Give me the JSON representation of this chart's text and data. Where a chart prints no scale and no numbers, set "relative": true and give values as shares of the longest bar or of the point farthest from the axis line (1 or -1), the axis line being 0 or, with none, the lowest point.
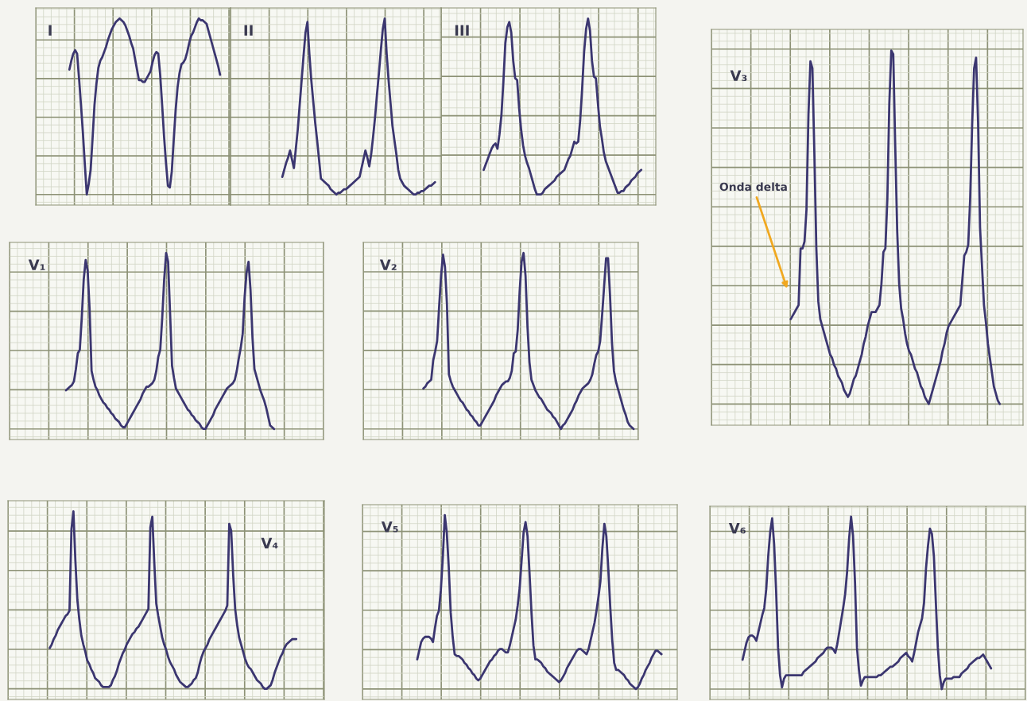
{
  "chart_data": [
    {
      "type": "line",
      "title": "I",
      "relative": true,
      "grid": true,
      "tick_labels": false,
      "color": "#3b3670",
      "categories": [
        null,
        null,
        null,
        null,
        null,
        null,
        null,
        null,
        null,
        null,
        null,
        null,
        null,
        null,
        null,
        null,
        null,
        null,
        null,
        null,
        null,
        null,
        null,
        null,
        null,
        null,
        null,
        null,
        null,
        null,
        null,
        null,
        null,
        null,
        null,
        null,
        null,
        null,
        null,
        null,
        null,
        null,
        null,
        null,
        null,
        null,
        null,
        null,
        null,
        null,
        null,
        null,
        null,
        null,
        null,
        null,
        null,
        null,
        null,
        null,
        null,
        null,
        null,
        null,
        null,
        null,
        null,
        null,
        null,
        null,
        null,
        null,
        null,
        null,
        null,
        null,
        null,
        null,
        null
      ],
      "values": [
        0.71,
        0.76,
        0.8,
        0.82,
        0.8,
        0.66,
        0.51,
        0.35,
        0.17,
        0,
        0.06,
        0.14,
        0.32,
        0.51,
        0.63,
        0.72,
        0.76,
        0.78,
        0.81,
        0.84,
        0.88,
        0.91,
        0.94,
        0.96,
        0.98,
        0.99,
        1,
        0.99,
        0.98,
        0.96,
        0.93,
        0.9,
        0.86,
        0.83,
        0.77,
        0.71,
        0.65,
        0.65,
        0.64,
        0.64,
        0.66,
        0.68,
        0.7,
        0.75,
        0.79,
        0.81,
        0.8,
        0.68,
        0.51,
        0.33,
        0.18,
        0.05,
        0.04,
        0.13,
        0.31,
        0.48,
        0.61,
        0.69,
        0.74,
        0.75,
        0.77,
        0.81,
        0.86,
        0.9,
        0.92,
        0.95,
        0.98,
        1,
        0.99,
        0.99,
        0.98,
        0.97,
        0.93,
        0.89,
        0.85,
        0.81,
        0.77,
        0.73,
        0.68
      ]
    },
    {
      "type": "line",
      "title": "II",
      "relative": true,
      "grid": true,
      "tick_labels": false,
      "color": "#3b3670",
      "categories": [
        null,
        null,
        null,
        null,
        null,
        null,
        null,
        null,
        null,
        null,
        null,
        null,
        null,
        null,
        null,
        null,
        null,
        null,
        null,
        null,
        null,
        null,
        null,
        null,
        null,
        null,
        null,
        null,
        null,
        null,
        null,
        null,
        null,
        null,
        null,
        null,
        null,
        null,
        null,
        null,
        null,
        null,
        null,
        null,
        null,
        null,
        null,
        null,
        null,
        null,
        null,
        null,
        null,
        null,
        null,
        null,
        null,
        null,
        null,
        null,
        null,
        null,
        null,
        null,
        null,
        null,
        null,
        null,
        null,
        null,
        null,
        null,
        null,
        null,
        null,
        null,
        null,
        null,
        null,
        null
      ],
      "values": [
        0.1,
        0.14,
        0.18,
        0.21,
        0.25,
        0.2,
        0.15,
        0.26,
        0.37,
        0.51,
        0.65,
        0.79,
        0.92,
        0.98,
        0.8,
        0.65,
        0.53,
        0.41,
        0.31,
        0.2,
        0.09,
        0.08,
        0.07,
        0.06,
        0.05,
        0.03,
        0.02,
        0.01,
        0,
        0.01,
        0.01,
        0.02,
        0.03,
        0.03,
        0.04,
        0.05,
        0.06,
        0.07,
        0.08,
        0.09,
        0.1,
        0.15,
        0.2,
        0.25,
        0.21,
        0.16,
        0.23,
        0.33,
        0.44,
        0.57,
        0.69,
        0.82,
        0.94,
        1,
        0.8,
        0.65,
        0.52,
        0.39,
        0.31,
        0.23,
        0.14,
        0.09,
        0.07,
        0.05,
        0.04,
        0.03,
        0.02,
        0.01,
        0,
        0,
        0.01,
        0.01,
        0.02,
        0.02,
        0.03,
        0.04,
        0.05,
        0.05,
        0.06,
        0.07
      ]
    },
    {
      "type": "line",
      "title": "III",
      "relative": true,
      "grid": true,
      "tick_labels": false,
      "color": "#3b3670",
      "categories": [
        null,
        null,
        null,
        null,
        null,
        null,
        null,
        null,
        null,
        null,
        null,
        null,
        null,
        null,
        null,
        null,
        null,
        null,
        null,
        null,
        null,
        null,
        null,
        null,
        null,
        null,
        null,
        null,
        null,
        null,
        null,
        null,
        null,
        null,
        null,
        null,
        null,
        null,
        null,
        null,
        null,
        null,
        null,
        null,
        null,
        null,
        null,
        null,
        null,
        null,
        null,
        null,
        null,
        null,
        null,
        null,
        null,
        null,
        null,
        null,
        null,
        null,
        null,
        null,
        null,
        null,
        null,
        null,
        null,
        null,
        null,
        null,
        null,
        null,
        null,
        null,
        null,
        null,
        null,
        null,
        null
      ],
      "values": [
        0.14,
        0.17,
        0.2,
        0.23,
        0.26,
        0.28,
        0.29,
        0.26,
        0.34,
        0.45,
        0.64,
        0.86,
        0.95,
        0.98,
        0.92,
        0.76,
        0.66,
        0.65,
        0.49,
        0.37,
        0.28,
        0.22,
        0.18,
        0.15,
        0.11,
        0.07,
        0.03,
        0,
        0,
        0,
        0.01,
        0.03,
        0.04,
        0.05,
        0.06,
        0.07,
        0.08,
        0.1,
        0.11,
        0.12,
        0.13,
        0.14,
        0.17,
        0.2,
        0.22,
        0.26,
        0.3,
        0.29,
        0.3,
        0.42,
        0.6,
        0.81,
        0.94,
        1,
        0.93,
        0.76,
        0.67,
        0.66,
        0.52,
        0.39,
        0.32,
        0.24,
        0.19,
        0.16,
        0.13,
        0.1,
        0.07,
        0.04,
        0.01,
        0.01,
        0.02,
        0.02,
        0.04,
        0.05,
        0.06,
        0.08,
        0.09,
        0.1,
        0.12,
        0.13,
        0.14
      ]
    },
    {
      "type": "line",
      "title": "V₁",
      "relative": true,
      "grid": true,
      "tick_labels": false,
      "color": "#3b3670",
      "categories": [
        null,
        null,
        null,
        null,
        null,
        null,
        null,
        null,
        null,
        null,
        null,
        null,
        null,
        null,
        null,
        null,
        null,
        null,
        null,
        null,
        null,
        null,
        null,
        null,
        null,
        null,
        null,
        null,
        null,
        null,
        null,
        null,
        null,
        null,
        null,
        null,
        null,
        null,
        null,
        null,
        null,
        null,
        null,
        null,
        null,
        null,
        null,
        null,
        null,
        null,
        null,
        null,
        null,
        null,
        null,
        null,
        null,
        null,
        null,
        null,
        null,
        null,
        null,
        null,
        null,
        null,
        null,
        null,
        null,
        null,
        null,
        null,
        null,
        null,
        null,
        null,
        null,
        null,
        null,
        null,
        null,
        null,
        null,
        null,
        null,
        null,
        null,
        null,
        null,
        null,
        null,
        null,
        null,
        null,
        null,
        null,
        null,
        null,
        null,
        null,
        null,
        null,
        null,
        null,
        null,
        null,
        null
      ],
      "values": [
        0.22,
        0.23,
        0.24,
        0.25,
        0.27,
        0.34,
        0.43,
        0.45,
        0.63,
        0.85,
        0.96,
        0.9,
        0.68,
        0.33,
        0.28,
        0.24,
        0.22,
        0.19,
        0.17,
        0.15,
        0.14,
        0.12,
        0.11,
        0.09,
        0.08,
        0.06,
        0.05,
        0.04,
        0.02,
        0.01,
        0.01,
        0.03,
        0.05,
        0.07,
        0.09,
        0.11,
        0.13,
        0.15,
        0.17,
        0.2,
        0.22,
        0.24,
        0.24,
        0.25,
        0.26,
        0.28,
        0.33,
        0.41,
        0.45,
        0.63,
        0.85,
        1,
        0.95,
        0.66,
        0.36,
        0.29,
        0.23,
        0.21,
        0.19,
        0.17,
        0.15,
        0.13,
        0.11,
        0.1,
        0.08,
        0.07,
        0.05,
        0.04,
        0.03,
        0.01,
        0,
        0,
        0.02,
        0.04,
        0.06,
        0.08,
        0.11,
        0.13,
        0.15,
        0.17,
        0.19,
        0.21,
        0.23,
        0.24,
        0.25,
        0.26,
        0.28,
        0.33,
        0.4,
        0.46,
        0.54,
        0.75,
        0.89,
        0.95,
        0.79,
        0.52,
        0.34,
        0.3,
        0.26,
        0.22,
        0.19,
        0.16,
        0.12,
        0.07,
        0.02,
        0.01,
        0
      ]
    },
    {
      "type": "line",
      "title": "V₂",
      "relative": true,
      "grid": true,
      "tick_labels": false,
      "color": "#3b3670",
      "categories": [
        null,
        null,
        null,
        null,
        null,
        null,
        null,
        null,
        null,
        null,
        null,
        null,
        null,
        null,
        null,
        null,
        null,
        null,
        null,
        null,
        null,
        null,
        null,
        null,
        null,
        null,
        null,
        null,
        null,
        null,
        null,
        null,
        null,
        null,
        null,
        null,
        null,
        null,
        null,
        null,
        null,
        null,
        null,
        null,
        null,
        null,
        null,
        null,
        null,
        null,
        null,
        null,
        null,
        null,
        null,
        null,
        null,
        null,
        null,
        null,
        null,
        null,
        null,
        null,
        null,
        null,
        null,
        null,
        null,
        null,
        null,
        null,
        null,
        null,
        null,
        null,
        null,
        null,
        null,
        null,
        null,
        null,
        null,
        null,
        null,
        null,
        null,
        null,
        null,
        null,
        null,
        null,
        null,
        null,
        null,
        null,
        null,
        null,
        null,
        null,
        null,
        null,
        null,
        null,
        null,
        null,
        null,
        null
      ],
      "values": [
        0.23,
        0.24,
        0.26,
        0.27,
        0.28,
        0.39,
        0.44,
        0.5,
        0.69,
        0.87,
        0.99,
        0.92,
        0.71,
        0.31,
        0.27,
        0.24,
        0.22,
        0.2,
        0.18,
        0.16,
        0.15,
        0.13,
        0.11,
        0.1,
        0.08,
        0.07,
        0.05,
        0.04,
        0.02,
        0.02,
        0.04,
        0.06,
        0.08,
        0.1,
        0.12,
        0.14,
        0.16,
        0.19,
        0.21,
        0.23,
        0.25,
        0.26,
        0.27,
        0.27,
        0.29,
        0.33,
        0.43,
        0.44,
        0.56,
        0.78,
        0.95,
        1,
        0.87,
        0.58,
        0.38,
        0.28,
        0.25,
        0.22,
        0.2,
        0.18,
        0.17,
        0.15,
        0.13,
        0.11,
        0.1,
        0.09,
        0.07,
        0.06,
        0.04,
        0.02,
        0,
        0.02,
        0.03,
        0.05,
        0.07,
        0.09,
        0.11,
        0.14,
        0.16,
        0.19,
        0.21,
        0.23,
        0.24,
        0.25,
        0.26,
        0.28,
        0.31,
        0.37,
        0.42,
        0.44,
        0.5,
        0.65,
        0.81,
        0.97,
        0.97,
        0.76,
        0.49,
        0.33,
        0.27,
        0.23,
        0.19,
        0.15,
        0.11,
        0.08,
        0.04,
        0.02,
        0.01,
        0
      ]
    },
    {
      "type": "line",
      "title": "V₃",
      "relative": true,
      "grid": true,
      "tick_labels": false,
      "color": "#3b3670",
      "annotations": [
        "Onda delta"
      ],
      "categories": [
        null,
        null,
        null,
        null,
        null,
        null,
        null,
        null,
        null,
        null,
        null,
        null,
        null,
        null,
        null,
        null,
        null,
        null,
        null,
        null,
        null,
        null,
        null,
        null,
        null,
        null,
        null,
        null,
        null,
        null,
        null,
        null,
        null,
        null,
        null,
        null,
        null,
        null,
        null,
        null,
        null,
        null,
        null,
        null,
        null,
        null,
        null,
        null,
        null,
        null,
        null,
        null,
        null,
        null,
        null,
        null,
        null,
        null,
        null,
        null,
        null,
        null,
        null,
        null,
        null,
        null,
        null,
        null,
        null,
        null,
        null,
        null,
        null,
        null,
        null,
        null,
        null,
        null,
        null,
        null,
        null,
        null,
        null,
        null,
        null,
        null,
        null,
        null,
        null,
        null,
        null,
        null,
        null,
        null,
        null,
        null,
        null,
        null,
        null,
        null,
        null,
        null,
        null,
        null,
        null,
        null,
        null
      ],
      "values": [
        0.24,
        0.25,
        0.26,
        0.27,
        0.28,
        0.44,
        0.44,
        0.46,
        0.55,
        0.82,
        0.97,
        0.95,
        0.71,
        0.44,
        0.29,
        0.24,
        0.22,
        0.2,
        0.18,
        0.16,
        0.14,
        0.13,
        0.11,
        0.1,
        0.08,
        0.07,
        0.06,
        0.04,
        0.03,
        0.02,
        0.03,
        0.05,
        0.07,
        0.08,
        0.1,
        0.12,
        0.14,
        0.17,
        0.19,
        0.22,
        0.24,
        0.26,
        0.26,
        0.26,
        0.27,
        0.28,
        0.34,
        0.43,
        0.44,
        0.58,
        0.85,
        1,
        0.99,
        0.73,
        0.49,
        0.34,
        0.27,
        0.24,
        0.2,
        0.17,
        0.15,
        0.14,
        0.12,
        0.1,
        0.09,
        0.07,
        0.05,
        0.04,
        0.02,
        0.01,
        0,
        0.02,
        0.04,
        0.06,
        0.08,
        0.1,
        0.12,
        0.15,
        0.17,
        0.2,
        0.22,
        0.23,
        0.24,
        0.25,
        0.26,
        0.27,
        0.28,
        0.35,
        0.42,
        0.43,
        0.45,
        0.58,
        0.79,
        0.95,
        0.98,
        0.8,
        0.5,
        0.39,
        0.28,
        0.23,
        0.17,
        0.13,
        0.09,
        0.05,
        0.03,
        0.01,
        0
      ]
    },
    {
      "type": "line",
      "title": "V₄",
      "relative": true,
      "grid": true,
      "tick_labels": false,
      "color": "#3b3670",
      "categories": [
        null,
        null,
        null,
        null,
        null,
        null,
        null,
        null,
        null,
        null,
        null,
        null,
        null,
        null,
        null,
        null,
        null,
        null,
        null,
        null,
        null,
        null,
        null,
        null,
        null,
        null,
        null,
        null,
        null,
        null,
        null,
        null,
        null,
        null,
        null,
        null,
        null,
        null,
        null,
        null,
        null,
        null,
        null,
        null,
        null,
        null,
        null,
        null,
        null,
        null,
        null,
        null,
        null,
        null,
        null,
        null,
        null,
        null,
        null,
        null,
        null,
        null,
        null,
        null,
        null,
        null,
        null,
        null,
        null,
        null,
        null,
        null,
        null,
        null,
        null,
        null,
        null,
        null,
        null,
        null,
        null,
        null,
        null,
        null,
        null,
        null,
        null,
        null,
        null,
        null,
        null,
        null,
        null,
        null,
        null,
        null,
        null,
        null,
        null,
        null,
        null,
        null,
        null,
        null,
        null,
        null,
        null,
        null,
        null,
        null,
        null,
        null,
        null,
        null,
        null,
        null,
        null,
        null,
        null,
        null,
        null,
        null,
        null,
        null,
        null,
        null
      ],
      "values": [
        0.23,
        0.25,
        0.28,
        0.3,
        0.33,
        0.35,
        0.37,
        0.39,
        0.41,
        0.42,
        0.44,
        0.9,
        1,
        0.72,
        0.5,
        0.39,
        0.3,
        0.25,
        0.21,
        0.16,
        0.14,
        0.11,
        0.09,
        0.06,
        0.05,
        0.04,
        0.02,
        0.01,
        0.01,
        0.01,
        0.01,
        0.02,
        0.05,
        0.07,
        0.1,
        0.14,
        0.17,
        0.2,
        0.22,
        0.25,
        0.27,
        0.29,
        0.31,
        0.32,
        0.34,
        0.35,
        0.37,
        0.39,
        0.41,
        0.43,
        0.45,
        0.91,
        0.97,
        0.71,
        0.48,
        0.41,
        0.35,
        0.29,
        0.25,
        0.22,
        0.18,
        0.15,
        0.13,
        0.11,
        0.08,
        0.06,
        0.04,
        0.03,
        0.02,
        0.01,
        0.01,
        0.02,
        0.03,
        0.05,
        0.06,
        0.09,
        0.14,
        0.18,
        0.21,
        0.23,
        0.25,
        0.28,
        0.3,
        0.32,
        0.34,
        0.36,
        0.38,
        0.4,
        0.42,
        0.44,
        0.47,
        0.93,
        0.89,
        0.64,
        0.45,
        0.36,
        0.29,
        0.25,
        0.21,
        0.17,
        0.14,
        0.12,
        0.11,
        0.09,
        0.07,
        0.05,
        0.04,
        0.03,
        0.01,
        0,
        0,
        0.01,
        0.02,
        0.05,
        0.09,
        0.12,
        0.15,
        0.18,
        0.2,
        0.23,
        0.25,
        0.26,
        0.27,
        0.28,
        0.28,
        0.28
      ]
    },
    {
      "type": "line",
      "title": "V₅",
      "relative": true,
      "grid": true,
      "tick_labels": false,
      "color": "#3b3670",
      "categories": [
        null,
        null,
        null,
        null,
        null,
        null,
        null,
        null,
        null,
        null,
        null,
        null,
        null,
        null,
        null,
        null,
        null,
        null,
        null,
        null,
        null,
        null,
        null,
        null,
        null,
        null,
        null,
        null,
        null,
        null,
        null,
        null,
        null,
        null,
        null,
        null,
        null,
        null,
        null,
        null,
        null,
        null,
        null,
        null,
        null,
        null,
        null,
        null,
        null,
        null,
        null,
        null,
        null,
        null,
        null,
        null,
        null,
        null,
        null,
        null,
        null,
        null,
        null,
        null,
        null,
        null,
        null,
        null,
        null,
        null,
        null,
        null,
        null,
        null,
        null,
        null,
        null,
        null,
        null,
        null,
        null,
        null,
        null,
        null,
        null,
        null,
        null,
        null,
        null,
        null,
        null,
        null,
        null,
        null,
        null,
        null,
        null,
        null,
        null,
        null,
        null,
        null,
        null,
        null,
        null,
        null,
        null,
        null,
        null,
        null,
        null,
        null,
        null,
        null,
        null,
        null,
        null,
        null,
        null,
        null,
        null,
        null,
        null,
        null,
        null
      ],
      "values": [
        0.17,
        0.22,
        0.27,
        0.29,
        0.3,
        0.3,
        0.3,
        0.29,
        0.27,
        0.35,
        0.42,
        0.45,
        0.57,
        0.76,
        1,
        0.9,
        0.7,
        0.44,
        0.3,
        0.2,
        0.19,
        0.19,
        0.18,
        0.17,
        0.15,
        0.14,
        0.12,
        0.11,
        0.09,
        0.08,
        0.06,
        0.05,
        0.06,
        0.08,
        0.1,
        0.12,
        0.14,
        0.16,
        0.17,
        0.19,
        0.2,
        0.22,
        0.23,
        0.23,
        0.22,
        0.21,
        0.21,
        0.25,
        0.3,
        0.35,
        0.4,
        0.48,
        0.58,
        0.74,
        0.9,
        0.96,
        0.88,
        0.67,
        0.44,
        0.25,
        0.17,
        0.17,
        0.16,
        0.15,
        0.13,
        0.12,
        0.1,
        0.09,
        0.08,
        0.07,
        0.06,
        0.05,
        0.04,
        0.05,
        0.07,
        0.09,
        0.12,
        0.14,
        0.16,
        0.18,
        0.2,
        0.22,
        0.23,
        0.23,
        0.22,
        0.21,
        0.2,
        0.23,
        0.28,
        0.33,
        0.38,
        0.45,
        0.53,
        0.62,
        0.81,
        0.95,
        0.88,
        0.69,
        0.47,
        0.28,
        0.15,
        0.11,
        0.11,
        0.1,
        0.09,
        0.08,
        0.06,
        0.05,
        0.03,
        0.02,
        0.01,
        0,
        0.01,
        0.03,
        0.06,
        0.08,
        0.11,
        0.13,
        0.15,
        0.18,
        0.2,
        0.22,
        0.22,
        0.21,
        0.2
      ]
    },
    {
      "type": "line",
      "title": "V₆",
      "relative": true,
      "grid": true,
      "tick_labels": false,
      "color": "#3b3670",
      "categories": [
        null,
        null,
        null,
        null,
        null,
        null,
        null,
        null,
        null,
        null,
        null,
        null,
        null,
        null,
        null,
        null,
        null,
        null,
        null,
        null,
        null,
        null,
        null,
        null,
        null,
        null,
        null,
        null,
        null,
        null,
        null,
        null,
        null,
        null,
        null,
        null,
        null,
        null,
        null,
        null,
        null,
        null,
        null,
        null,
        null,
        null,
        null,
        null,
        null,
        null,
        null,
        null,
        null,
        null,
        null,
        null,
        null,
        null,
        null,
        null,
        null,
        null,
        null,
        null,
        null,
        null,
        null,
        null,
        null,
        null,
        null,
        null,
        null,
        null,
        null,
        null,
        null,
        null,
        null,
        null,
        null,
        null,
        null,
        null,
        null,
        null,
        null,
        null,
        null,
        null,
        null,
        null,
        null,
        null,
        null,
        null,
        null,
        null,
        null,
        null,
        null,
        null,
        null,
        null,
        null,
        null,
        null,
        null,
        null,
        null,
        null,
        null,
        null,
        null,
        null,
        null,
        null,
        null,
        null,
        null,
        null,
        null,
        null,
        null,
        null,
        null,
        null
      ],
      "values": [
        0.17,
        0.22,
        0.27,
        0.3,
        0.31,
        0.31,
        0.3,
        0.28,
        0.33,
        0.38,
        0.43,
        0.47,
        0.58,
        0.77,
        0.91,
        0.99,
        0.84,
        0.57,
        0.24,
        0.08,
        0.01,
        0.06,
        0.08,
        0.08,
        0.08,
        0.08,
        0.08,
        0.08,
        0.08,
        0.08,
        0.08,
        0.1,
        0.11,
        0.12,
        0.13,
        0.14,
        0.15,
        0.16,
        0.18,
        0.19,
        0.2,
        0.21,
        0.23,
        0.24,
        0.24,
        0.24,
        0.23,
        0.21,
        0.26,
        0.33,
        0.4,
        0.47,
        0.55,
        0.68,
        0.87,
        1,
        0.89,
        0.62,
        0.24,
        0.11,
        0.02,
        0.05,
        0.07,
        0.07,
        0.07,
        0.07,
        0.07,
        0.07,
        0.07,
        0.08,
        0.08,
        0.09,
        0.1,
        0.11,
        0.12,
        0.13,
        0.13,
        0.14,
        0.15,
        0.16,
        0.18,
        0.19,
        0.2,
        0.21,
        0.19,
        0.18,
        0.16,
        0.21,
        0.27,
        0.33,
        0.37,
        0.41,
        0.5,
        0.7,
        0.83,
        0.93,
        0.9,
        0.77,
        0.5,
        0.24,
        0.08,
        0,
        0.04,
        0.06,
        0.06,
        0.06,
        0.06,
        0.07,
        0.07,
        0.07,
        0.07,
        0.09,
        0.1,
        0.11,
        0.12,
        0.14,
        0.15,
        0.16,
        0.17,
        0.18,
        0.18,
        0.19,
        0.2,
        0.18,
        0.16,
        0.14,
        0.12
      ]
    }
  ]
}
